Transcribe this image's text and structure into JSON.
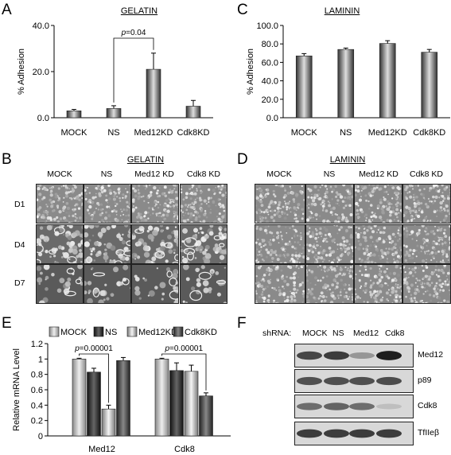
{
  "panels": {
    "A": {
      "letter": "A",
      "title": "GELATIN"
    },
    "B": {
      "letter": "B",
      "title": "GELATIN",
      "columns": [
        "MOCK",
        "NS",
        "Med12 KD",
        "Cdk8 KD"
      ],
      "rows": [
        "D1",
        "D4",
        "D7"
      ]
    },
    "C": {
      "letter": "C",
      "title": "LAMININ"
    },
    "D": {
      "letter": "D",
      "title": "LAMININ",
      "columns": [
        "MOCK",
        "NS",
        "Med12 KD",
        "Cdk8 KD"
      ]
    },
    "E": {
      "letter": "E"
    },
    "F": {
      "letter": "F",
      "header_label": "shRNA:",
      "lanes": [
        "MOCK",
        "NS",
        "Med12",
        "Cdk8"
      ],
      "blots": [
        {
          "label": "Med12",
          "intensities": [
            0.75,
            0.8,
            0.35,
            0.95
          ]
        },
        {
          "label": "p89",
          "intensities": [
            0.7,
            0.7,
            0.7,
            0.72
          ]
        },
        {
          "label": "Cdk8",
          "intensities": [
            0.55,
            0.6,
            0.55,
            0.15
          ]
        },
        {
          "label": "TfIIeβ",
          "intensities": [
            0.8,
            0.8,
            0.8,
            0.8
          ]
        }
      ]
    }
  },
  "chart_data": [
    {
      "type": "bar",
      "panel": "A",
      "title": "GELATIN",
      "ylabel": "% Adhesion",
      "categories": [
        "MOCK",
        "NS",
        "Med12KD",
        "Cdk8KD"
      ],
      "values": [
        3.0,
        4.0,
        21.0,
        5.0
      ],
      "errors": [
        0.6,
        1.2,
        7.0,
        2.5
      ],
      "ylim": [
        0,
        40
      ],
      "yticks": [
        "0.0",
        "20.0",
        "40.0"
      ],
      "annotation": {
        "text": "p=0.04",
        "from": "NS",
        "to": "Med12KD"
      }
    },
    {
      "type": "bar",
      "panel": "C",
      "title": "LAMININ",
      "ylabel": "% Adhesion",
      "categories": [
        "MOCK",
        "NS",
        "Med12KD",
        "Cdk8KD"
      ],
      "values": [
        67.0,
        74.0,
        80.5,
        71.0
      ],
      "errors": [
        2.5,
        1.5,
        3.0,
        3.0
      ],
      "ylim": [
        0,
        100
      ],
      "yticks": [
        "0.0",
        "20.0",
        "40.0",
        "60.0",
        "80.0",
        "100.0"
      ]
    },
    {
      "type": "bar",
      "panel": "E",
      "ylabel": "Relative mRNA Level",
      "categories": [
        "Med12",
        "Cdk8"
      ],
      "series": [
        {
          "name": "MOCK",
          "values": [
            1.0,
            1.0
          ],
          "errors": [
            0.01,
            0.01
          ]
        },
        {
          "name": "NS",
          "values": [
            0.83,
            0.85
          ],
          "errors": [
            0.05,
            0.1
          ]
        },
        {
          "name": "Med12KD",
          "values": [
            0.35,
            0.84
          ],
          "errors": [
            0.05,
            0.08
          ]
        },
        {
          "name": "Cdk8KD",
          "values": [
            0.98,
            0.52
          ],
          "errors": [
            0.04,
            0.04
          ]
        }
      ],
      "ylim": [
        0,
        1.2
      ],
      "yticks": [
        "0",
        "0.2",
        "0.4",
        "0.6",
        "0.8",
        "1",
        "1.2"
      ],
      "annotations": [
        {
          "text": "p=0.00001",
          "group": "Med12",
          "from": "MOCK",
          "to": "Med12KD"
        },
        {
          "text": "p=0.00001",
          "group": "Cdk8",
          "from": "MOCK",
          "to": "Cdk8KD"
        }
      ],
      "legend": "top"
    }
  ]
}
